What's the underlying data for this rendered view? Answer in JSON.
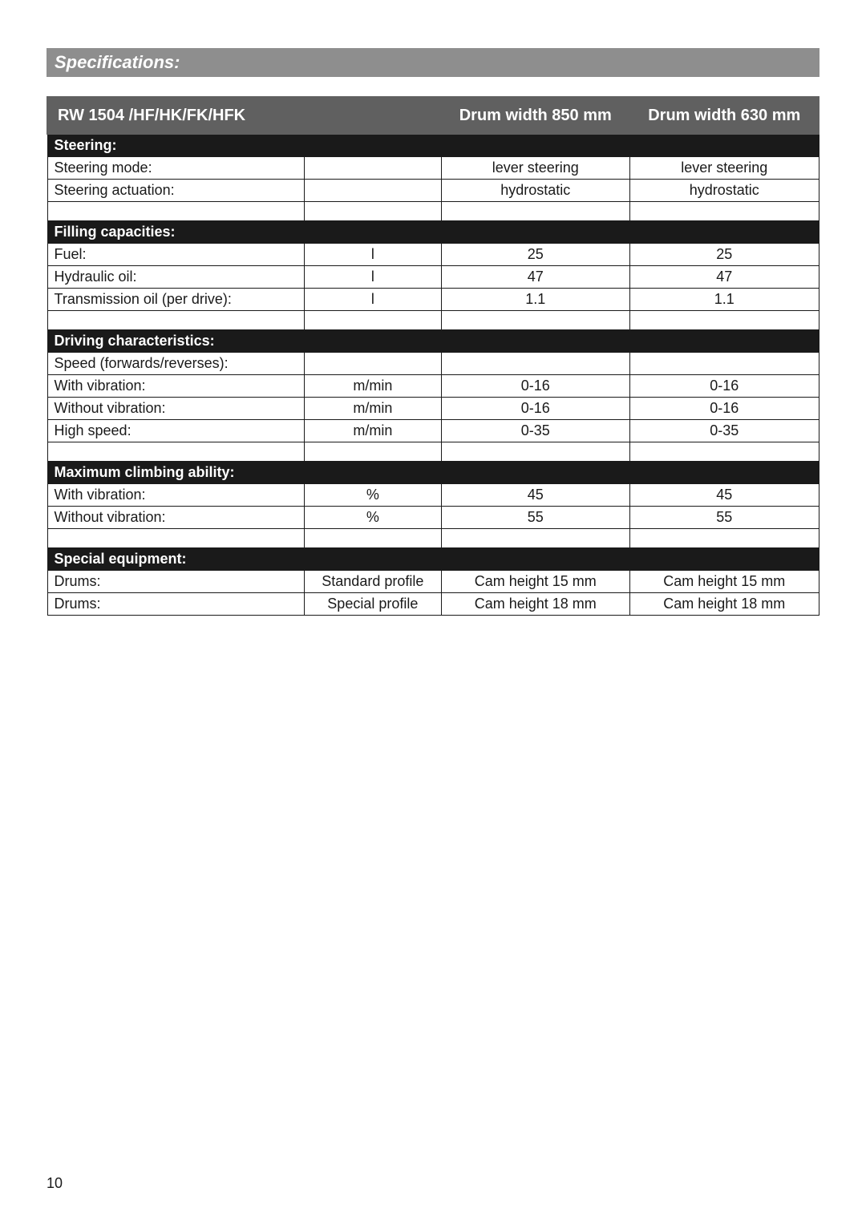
{
  "section_title": "Specifications:",
  "page_number": "10",
  "header": {
    "model": "RW 1504 /HF/HK/FK/HFK",
    "col_a": "Drum width 850 mm",
    "col_b": "Drum width 630 mm"
  },
  "groups": [
    {
      "title": "Steering:",
      "rows": [
        {
          "label": "Steering mode:",
          "unit": "",
          "a": "lever steering",
          "b": "lever steering"
        },
        {
          "label": "Steering actuation:",
          "unit": "",
          "a": "hydrostatic",
          "b": "hydrostatic"
        }
      ],
      "trailing_spacer": true
    },
    {
      "title": "Filling capacities:",
      "rows": [
        {
          "label": "Fuel:",
          "unit": "l",
          "a": "25",
          "b": "25"
        },
        {
          "label": "Hydraulic oil:",
          "unit": "l",
          "a": "47",
          "b": "47"
        },
        {
          "label": "Transmission oil (per drive):",
          "unit": "l",
          "a": "1.1",
          "b": "1.1"
        }
      ],
      "trailing_spacer": true
    },
    {
      "title": "Driving characteristics:",
      "rows": [
        {
          "label": "Speed (forwards/reverses):",
          "unit": "",
          "a": "",
          "b": ""
        },
        {
          "label": "With vibration:",
          "unit": "m/min",
          "a": "0-16",
          "b": "0-16"
        },
        {
          "label": "Without vibration:",
          "unit": "m/min",
          "a": "0-16",
          "b": "0-16"
        },
        {
          "label": "High speed:",
          "unit": "m/min",
          "a": "0-35",
          "b": "0-35"
        }
      ],
      "trailing_spacer": true
    },
    {
      "title": "Maximum climbing ability:",
      "rows": [
        {
          "label": "With vibration:",
          "unit": "%",
          "a": "45",
          "b": "45"
        },
        {
          "label": "Without vibration:",
          "unit": "%",
          "a": "55",
          "b": "55"
        }
      ],
      "trailing_spacer": true
    },
    {
      "title": "Special equipment:",
      "rows": [
        {
          "label": "Drums:",
          "unit": "Standard profile",
          "a": "Cam height 15 mm",
          "b": "Cam height 15 mm"
        },
        {
          "label": "Drums:",
          "unit": "Special profile",
          "a": "Cam height 18 mm",
          "b": "Cam height 18 mm"
        }
      ],
      "trailing_spacer": false
    }
  ]
}
